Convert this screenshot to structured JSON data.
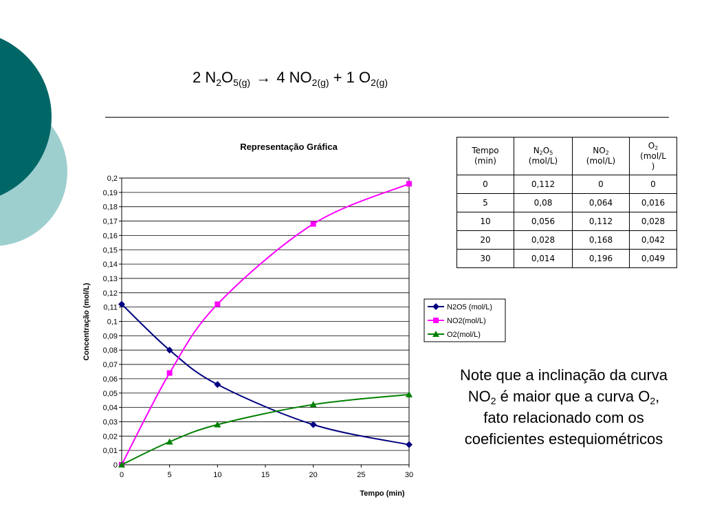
{
  "slide": {
    "decor_colors": {
      "dark_teal": "#006666",
      "light_teal": "#9ecfcf"
    },
    "equation": {
      "c1": "2 N",
      "s1": "2",
      "c2": "O",
      "s2": "5(g)",
      "arrow": "→",
      "c3": " 4 NO",
      "s3": "2(g)",
      "c4": " + 1 O",
      "s4": "2(g)"
    },
    "table": {
      "headers": [
        {
          "line1": "Tempo",
          "line2": "(min)"
        },
        {
          "line1_html": "N<sub>2</sub>O<sub>5</sub>",
          "line2": "(mol/L)"
        },
        {
          "line1_html": "NO<sub>2</sub>",
          "line2": "(mol/L)"
        },
        {
          "line1_html": "O<sub>2</sub>",
          "line2": "(mol/L",
          "line3": ")"
        }
      ],
      "rows": [
        [
          "0",
          "0,112",
          "0",
          "0"
        ],
        [
          "5",
          "0,08",
          "0,064",
          "0,016"
        ],
        [
          "10",
          "0,056",
          "0,112",
          "0,028"
        ],
        [
          "20",
          "0,028",
          "0,168",
          "0,042"
        ],
        [
          "30",
          "0,014",
          "0,196",
          "0,049"
        ]
      ]
    },
    "note": {
      "p1": "Note que a inclinação da curva NO",
      "s1": "2",
      "p2": " é maior que a curva O",
      "s2": "2",
      "p3": ", fato relacionado com os coeficientes estequiométricos"
    }
  },
  "chart_data": {
    "type": "line",
    "title": "Representação Gráfica",
    "xlabel": "Tempo (min)",
    "ylabel": "Concentração (mol/L)",
    "x": [
      0,
      5,
      10,
      20,
      30
    ],
    "xlim": [
      0,
      30
    ],
    "ylim": [
      0,
      0.2
    ],
    "x_ticks": [
      "0",
      "5",
      "10",
      "15",
      "20",
      "25",
      "30"
    ],
    "y_ticks": [
      "0",
      "0,01",
      "0,02",
      "0,03",
      "0,04",
      "0,05",
      "0,06",
      "0,07",
      "0,08",
      "0,09",
      "0,1",
      "0,11",
      "0,12",
      "0,13",
      "0,14",
      "0,15",
      "0,16",
      "0,17",
      "0,18",
      "0,19",
      "0,2"
    ],
    "grid": "horizontal",
    "legend_position": "right",
    "series": [
      {
        "name": "N2O5 (mol/L)",
        "values": [
          0.112,
          0.08,
          0.056,
          0.028,
          0.014
        ],
        "color": "#000080",
        "marker": "diamond"
      },
      {
        "name": "NO2(mol/L)",
        "values": [
          0,
          0.064,
          0.112,
          0.168,
          0.196
        ],
        "color": "#ff00ff",
        "marker": "square"
      },
      {
        "name": "O2(mol/L)",
        "values": [
          0,
          0.016,
          0.028,
          0.042,
          0.049
        ],
        "color": "#008000",
        "marker": "triangle"
      }
    ]
  }
}
